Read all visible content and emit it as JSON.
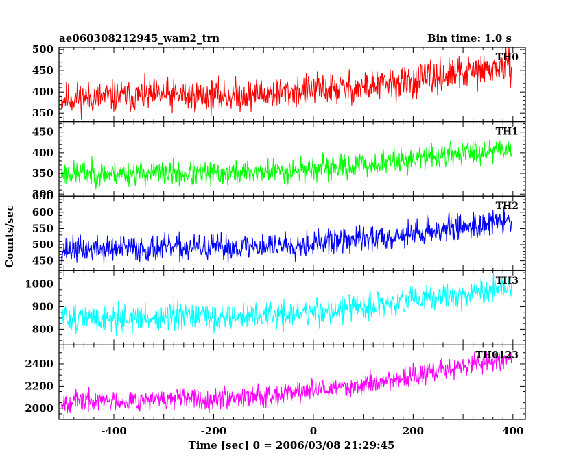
{
  "header": {
    "title": "ae060308212945_wam2_trn",
    "bin_time": "Bin time: 1.0 s"
  },
  "chart_data": {
    "type": "line",
    "xlabel": "Time [sec] 0 = 2006/03/08 21:29:45",
    "ylabel": "Counts/sec",
    "xlim": [
      -510,
      425
    ],
    "x_ticks": [
      -400,
      -200,
      0,
      200,
      400
    ],
    "x_range": [
      -505,
      397
    ],
    "bin_seconds": 1.0,
    "grid": false,
    "panels": [
      {
        "name": "TH0",
        "color": "#ff0000",
        "ylim": [
          330,
          505
        ],
        "y_ticks": [
          350,
          400,
          450,
          500
        ],
        "trend": [
          [
            -505,
            385
          ],
          [
            -300,
            392
          ],
          [
            -200,
            390
          ],
          [
            -80,
            397
          ],
          [
            0,
            405
          ],
          [
            100,
            410
          ],
          [
            200,
            425
          ],
          [
            300,
            445
          ],
          [
            397,
            460
          ]
        ],
        "noise_amplitude": 28,
        "seed": 11
      },
      {
        "name": "TH1",
        "color": "#00ff00",
        "ylim": [
          295,
          475
        ],
        "y_ticks": [
          300,
          350,
          400,
          450
        ],
        "trend": [
          [
            -505,
            350
          ],
          [
            -300,
            350
          ],
          [
            -200,
            348
          ],
          [
            -80,
            355
          ],
          [
            0,
            360
          ],
          [
            100,
            370
          ],
          [
            200,
            385
          ],
          [
            300,
            400
          ],
          [
            397,
            412
          ]
        ],
        "noise_amplitude": 22,
        "seed": 23
      },
      {
        "name": "TH2",
        "color": "#0000ff",
        "ylim": [
          420,
          650
        ],
        "y_ticks": [
          450,
          500,
          550,
          600,
          650
        ],
        "trend": [
          [
            -505,
            485
          ],
          [
            -300,
            488
          ],
          [
            -200,
            490
          ],
          [
            -80,
            497
          ],
          [
            0,
            505
          ],
          [
            100,
            515
          ],
          [
            200,
            535
          ],
          [
            300,
            555
          ],
          [
            397,
            575
          ]
        ],
        "noise_amplitude": 30,
        "seed": 37
      },
      {
        "name": "TH3",
        "color": "#00ffff",
        "ylim": [
          730,
          1060
        ],
        "y_ticks": [
          800,
          900,
          1000
        ],
        "trend": [
          [
            -505,
            850
          ],
          [
            -300,
            850
          ],
          [
            -200,
            852
          ],
          [
            -80,
            862
          ],
          [
            0,
            875
          ],
          [
            100,
            895
          ],
          [
            200,
            925
          ],
          [
            300,
            955
          ],
          [
            397,
            980
          ]
        ],
        "noise_amplitude": 45,
        "seed": 51
      },
      {
        "name": "TH0123",
        "color": "#ff00ff",
        "ylim": [
          1900,
          2570
        ],
        "y_ticks": [
          2000,
          2200,
          2400
        ],
        "trend": [
          [
            -505,
            2060
          ],
          [
            -300,
            2080
          ],
          [
            -200,
            2090
          ],
          [
            -80,
            2130
          ],
          [
            0,
            2160
          ],
          [
            100,
            2210
          ],
          [
            200,
            2290
          ],
          [
            300,
            2380
          ],
          [
            397,
            2460
          ]
        ],
        "noise_amplitude": 70,
        "seed": 67
      }
    ]
  }
}
